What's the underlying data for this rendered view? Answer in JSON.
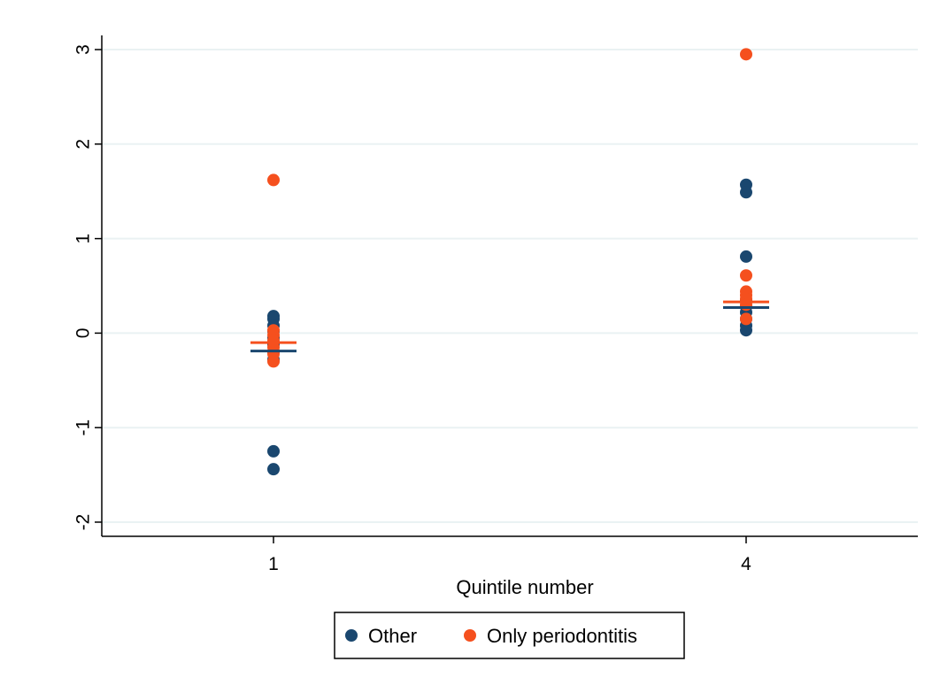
{
  "chart_data": {
    "type": "scatter",
    "title": "",
    "xlabel": "Quintile number",
    "ylabel": "",
    "x_ticks": [
      "1",
      "4"
    ],
    "y_ticks": [
      "-2",
      "-1",
      "0",
      "1",
      "2",
      "3"
    ],
    "ylim": [
      -2.15,
      3.15
    ],
    "grid": true,
    "legend_position": "bottom",
    "series": [
      {
        "name": "Other",
        "color": "#1a476f",
        "points": [
          {
            "x": "1",
            "y": 0.18
          },
          {
            "x": "1",
            "y": 0.15
          },
          {
            "x": "1",
            "y": 0.08
          },
          {
            "x": "1",
            "y": 0.02
          },
          {
            "x": "1",
            "y": -0.05
          },
          {
            "x": "1",
            "y": -0.12
          },
          {
            "x": "1",
            "y": -0.2
          },
          {
            "x": "1",
            "y": -0.28
          },
          {
            "x": "1",
            "y": -1.25
          },
          {
            "x": "1",
            "y": -1.44
          },
          {
            "x": "4",
            "y": 1.57
          },
          {
            "x": "4",
            "y": 1.49
          },
          {
            "x": "4",
            "y": 0.81
          },
          {
            "x": "4",
            "y": 0.35
          },
          {
            "x": "4",
            "y": 0.28
          },
          {
            "x": "4",
            "y": 0.22
          },
          {
            "x": "4",
            "y": 0.15
          },
          {
            "x": "4",
            "y": 0.08
          },
          {
            "x": "4",
            "y": 0.03
          }
        ],
        "mean": {
          "1": -0.19,
          "4": 0.27
        }
      },
      {
        "name": "Only periodontitis",
        "color": "#f5501e",
        "points": [
          {
            "x": "1",
            "y": 1.62
          },
          {
            "x": "1",
            "y": 0.03
          },
          {
            "x": "1",
            "y": -0.02
          },
          {
            "x": "1",
            "y": -0.08
          },
          {
            "x": "1",
            "y": -0.15
          },
          {
            "x": "1",
            "y": -0.22
          },
          {
            "x": "1",
            "y": -0.3
          },
          {
            "x": "4",
            "y": 2.95
          },
          {
            "x": "4",
            "y": 0.61
          },
          {
            "x": "4",
            "y": 0.44
          },
          {
            "x": "4",
            "y": 0.4
          },
          {
            "x": "4",
            "y": 0.36
          },
          {
            "x": "4",
            "y": 0.3
          },
          {
            "x": "4",
            "y": 0.15
          }
        ],
        "mean": {
          "1": -0.1,
          "4": 0.33
        }
      }
    ]
  }
}
